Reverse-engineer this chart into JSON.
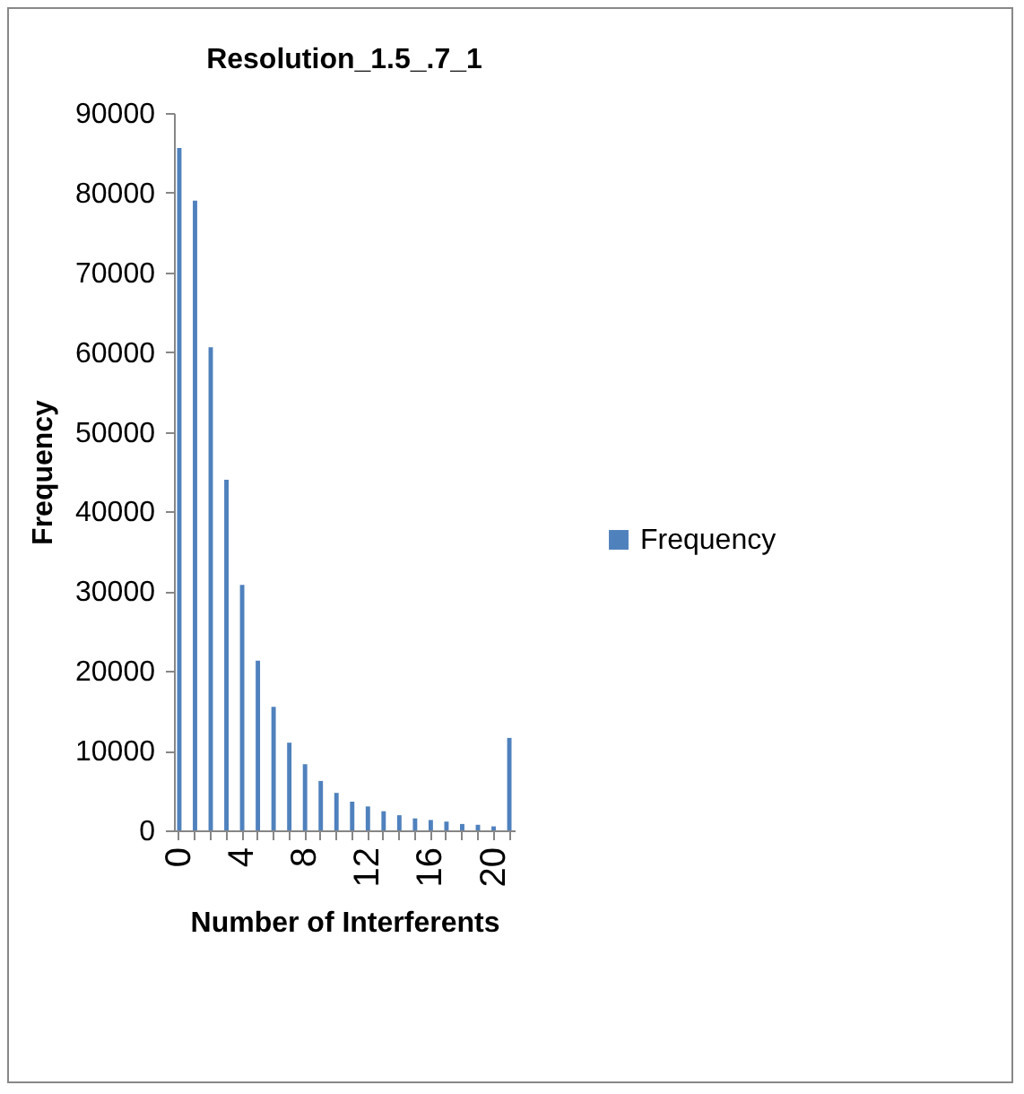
{
  "chart_data": {
    "type": "bar",
    "title": "Resolution_1.5_.7_1",
    "xlabel": "Number of Interferents",
    "ylabel": "Frequency",
    "categories": [
      "0",
      null,
      null,
      null,
      "4",
      null,
      null,
      null,
      "8",
      null,
      null,
      null,
      "12",
      null,
      null,
      null,
      "16",
      null,
      null,
      null,
      "20",
      null
    ],
    "series": [
      {
        "name": "Frequency",
        "color": "#4f81bd",
        "values": [
          85600,
          79000,
          60600,
          44000,
          30800,
          21300,
          15500,
          11000,
          8300,
          6200,
          4700,
          3600,
          3000,
          2400,
          1900,
          1500,
          1300,
          1100,
          800,
          700,
          500,
          11600
        ]
      }
    ],
    "ylim": [
      0,
      90000
    ],
    "yticks": [
      0,
      10000,
      20000,
      30000,
      40000,
      50000,
      60000,
      70000,
      80000,
      90000
    ],
    "grid": false,
    "legend": "right"
  }
}
